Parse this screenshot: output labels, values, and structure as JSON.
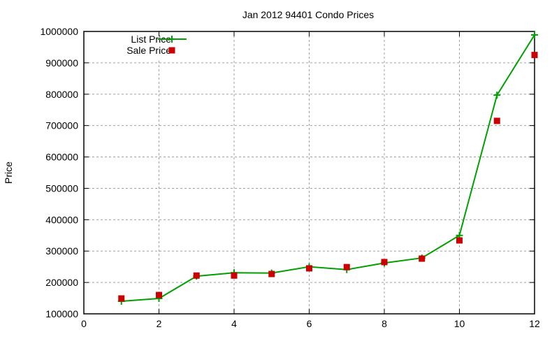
{
  "chart_data": {
    "type": "line",
    "title": "Jan 2012 94401 Condo Prices",
    "xlabel": "",
    "ylabel": "Price",
    "xlim": [
      0,
      12
    ],
    "ylim": [
      100000,
      1000000
    ],
    "x_ticks": [
      0,
      2,
      4,
      6,
      8,
      10,
      12
    ],
    "y_ticks": [
      100000,
      200000,
      300000,
      400000,
      500000,
      600000,
      700000,
      800000,
      900000,
      1000000
    ],
    "grid": true,
    "legend_position": "top-left",
    "x": [
      1,
      2,
      3,
      4,
      5,
      6,
      7,
      8,
      9,
      10,
      11,
      12
    ],
    "series": [
      {
        "name": "List Price",
        "style": "linespoints",
        "color": "#00a000",
        "values": [
          140000,
          149000,
          220000,
          231000,
          230000,
          250000,
          241000,
          262000,
          278000,
          350000,
          797000,
          989000
        ]
      },
      {
        "name": "Sale Price",
        "style": "points",
        "color": "#cc0000",
        "values": [
          149000,
          160000,
          222000,
          222000,
          227000,
          245000,
          249000,
          265000,
          276000,
          334000,
          715000,
          925000
        ]
      }
    ]
  }
}
